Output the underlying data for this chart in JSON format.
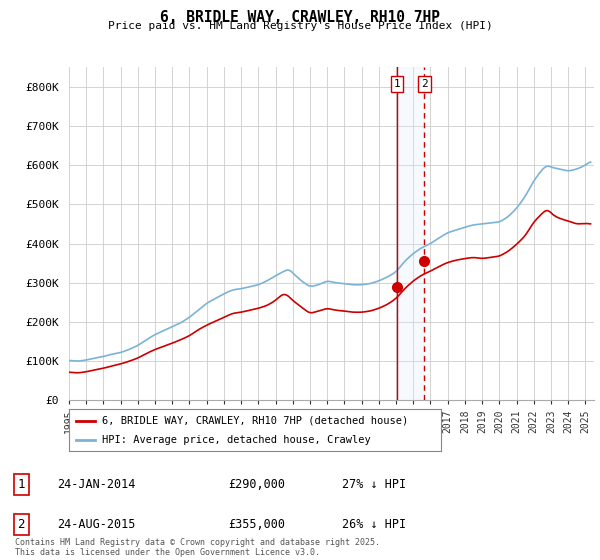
{
  "title": "6, BRIDLE WAY, CRAWLEY, RH10 7HP",
  "subtitle": "Price paid vs. HM Land Registry's House Price Index (HPI)",
  "legend_line1": "6, BRIDLE WAY, CRAWLEY, RH10 7HP (detached house)",
  "legend_line2": "HPI: Average price, detached house, Crawley",
  "footer": "Contains HM Land Registry data © Crown copyright and database right 2025.\nThis data is licensed under the Open Government Licence v3.0.",
  "annotation1_date": "24-JAN-2014",
  "annotation1_price": "£290,000",
  "annotation1_hpi": "27% ↓ HPI",
  "annotation2_date": "24-AUG-2015",
  "annotation2_price": "£355,000",
  "annotation2_hpi": "26% ↓ HPI",
  "hpi_color": "#7ab3d4",
  "price_color": "#cc0000",
  "vline1_color": "#cc0000",
  "vline2_color": "#cc0000",
  "shade_color": "#ddeeff",
  "ylim": [
    0,
    850000
  ],
  "yticks": [
    0,
    100000,
    200000,
    300000,
    400000,
    500000,
    600000,
    700000,
    800000
  ],
  "ytick_labels": [
    "£0",
    "£100K",
    "£200K",
    "£300K",
    "£400K",
    "£500K",
    "£600K",
    "£700K",
    "£800K"
  ],
  "sale1_x": 2014.07,
  "sale1_y": 290000,
  "sale2_x": 2015.65,
  "sale2_y": 355000,
  "xmin": 1995.0,
  "xmax": 2025.5
}
